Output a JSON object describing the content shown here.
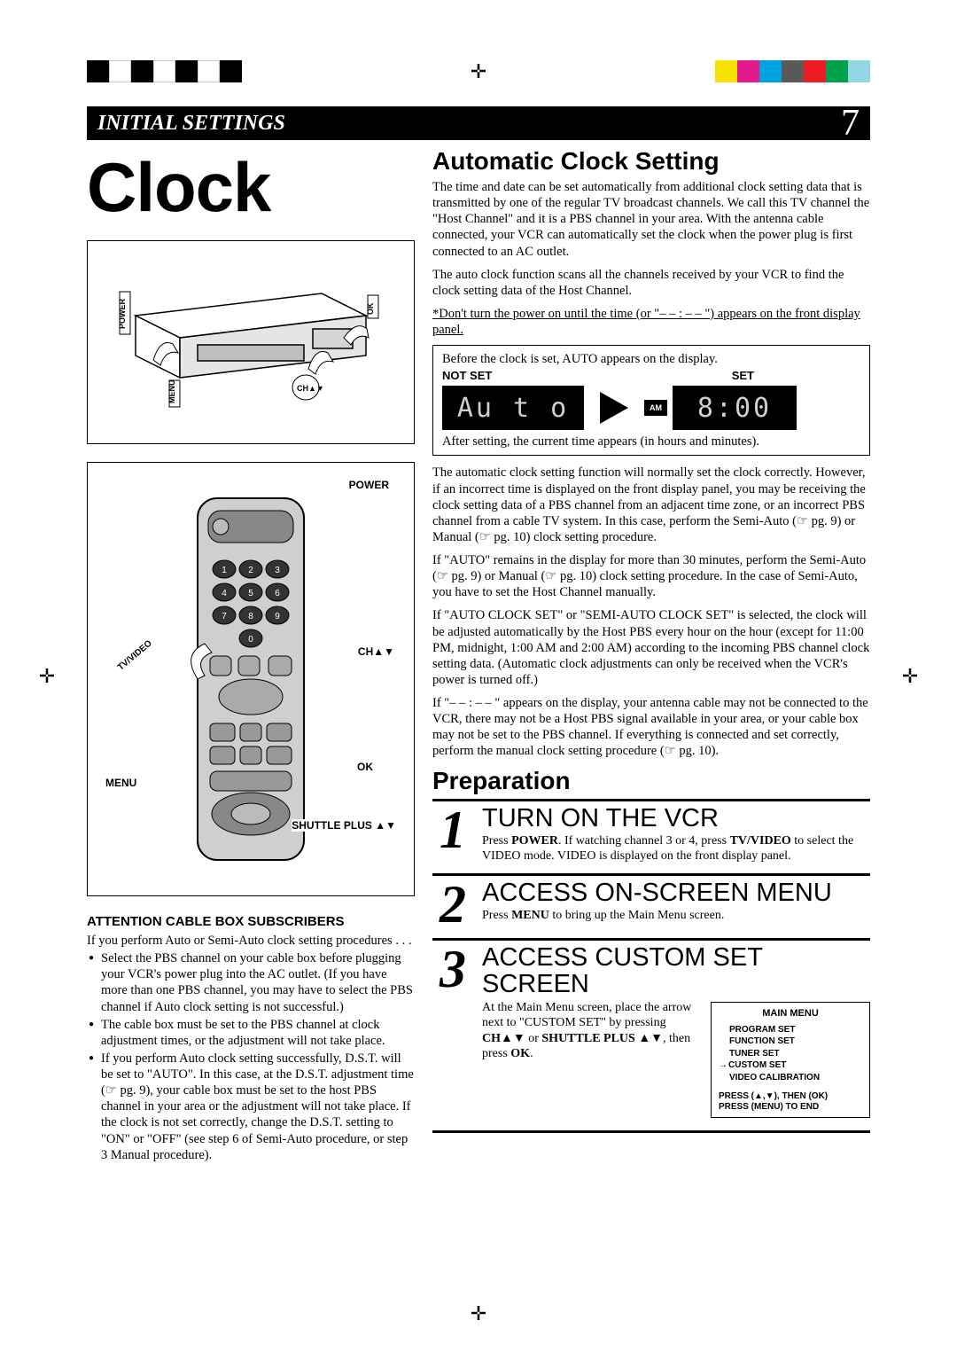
{
  "printmarks": {
    "bar_colors_left": [
      "#000000",
      "#ffffff",
      "#000000",
      "#ffffff",
      "#000000",
      "#ffffff",
      "#000000"
    ],
    "bar_colors_right": [
      "#f6e100",
      "#e11b8b",
      "#00a2e0",
      "#595959",
      "#ed1c24",
      "#00a14b",
      "#92d6e3"
    ]
  },
  "header": {
    "section": "INITIAL SETTINGS",
    "page_number": "7"
  },
  "title": "Clock",
  "left": {
    "vcr_labels": {
      "power": "POWER",
      "ok": "OK",
      "menu": "MENU",
      "ch": "CH▲▼"
    },
    "remote_labels": {
      "power": "POWER",
      "ch": "CH▲▼",
      "ok": "OK",
      "menu": "MENU",
      "shuttle": "SHUTTLE PLUS ▲▼",
      "tvvideo": "TV/VIDEO"
    },
    "attention_title": "ATTENTION CABLE BOX SUBSCRIBERS",
    "attention_intro": "If you perform Auto or Semi-Auto clock setting procedures . . .",
    "bullets": [
      "Select the PBS channel on your cable box before plugging your VCR's power plug into the AC outlet. (If you have more than one PBS channel, you may have to select the PBS channel if Auto clock setting is not successful.)",
      "The cable box must be set to the PBS channel at clock adjustment times, or the adjustment will not take place.",
      "If you perform Auto clock setting successfully, D.S.T. will be set to \"AUTO\". In this case, at the D.S.T. adjustment time (☞ pg. 9), your cable box must be set to the host PBS channel in your area or the adjustment will not take place. If the clock is not set correctly, change the D.S.T. setting to \"ON\" or \"OFF\" (see step 6 of Semi-Auto procedure, or step 3 Manual procedure)."
    ]
  },
  "right": {
    "auto_title": "Automatic Clock Setting",
    "p1": "The time and date can be set automatically from additional clock setting data that is transmitted by one of the regular TV broadcast channels. We call this TV channel the \"Host Channel\" and it is a PBS channel in your area. With the antenna cable connected, your VCR can automatically set the clock when the power plug is first connected to an AC outlet.",
    "p2": "The auto clock function scans all the channels received by your VCR to find the clock setting data of the Host Channel.",
    "p3_underlined": "*Don't turn the power on until the time (or \"– – : – – \") appears on the front display panel.",
    "display": {
      "before_text": "Before the clock is set, AUTO appears on the display.",
      "not_set_label": "NOT SET",
      "not_set_value": "Au t o",
      "set_label": "SET",
      "am_label": "AM",
      "set_value": "8:00",
      "after_text": "After setting, the current time appears (in hours and minutes)."
    },
    "p4": "The automatic clock setting function will normally set the clock correctly. However, if an incorrect time is displayed on the front display panel, you may be receiving the clock setting data of a PBS channel from an adjacent time zone, or an incorrect PBS channel from a cable TV system. In this case, perform the Semi-Auto (☞ pg. 9) or Manual (☞ pg. 10) clock setting procedure.",
    "p5": "If \"AUTO\" remains in the display for more than 30 minutes, perform the Semi-Auto (☞ pg. 9) or Manual (☞ pg. 10) clock setting procedure. In the case of Semi-Auto, you have to set the Host Channel manually.",
    "p6": "If \"AUTO CLOCK SET\" or \"SEMI-AUTO CLOCK SET\" is selected, the clock will be adjusted automatically by the Host PBS every hour on the hour (except for 11:00 PM, midnight, 1:00 AM and 2:00 AM) according to the incoming PBS channel clock setting data. (Automatic clock adjustments can only be received when the VCR's power is turned off.)",
    "p7": "If \"– – : – – \" appears on the display, your antenna cable may not be connected to the VCR, there may not be a Host PBS signal available in your area, or your cable box may not be set to the PBS channel. If everything is connected and set correctly, perform the manual clock setting procedure (☞ pg. 10).",
    "prep_title": "Preparation",
    "steps": [
      {
        "num": "1",
        "title": "TURN ON THE VCR",
        "text_html": "Press <b>POWER</b>. If watching channel 3 or 4, press <b>TV/VIDEO</b> to select the VIDEO mode. VIDEO is displayed on the front display panel."
      },
      {
        "num": "2",
        "title": "ACCESS ON-SCREEN MENU",
        "text_html": "Press <b>MENU</b> to bring up the Main Menu screen."
      },
      {
        "num": "3",
        "title": "ACCESS CUSTOM SET SCREEN",
        "text_html": "At the Main Menu screen, place the arrow next to \"CUSTOM SET\" by pressing <b>CH▲▼</b> or <b>SHUTTLE PLUS ▲▼</b>, then press <b>OK</b>."
      }
    ],
    "menu": {
      "title": "MAIN MENU",
      "items": [
        "PROGRAM SET",
        "FUNCTION SET",
        "TUNER SET",
        "CUSTOM SET",
        "VIDEO CALIBRATION"
      ],
      "selected_index": 3,
      "footer1": "PRESS (▲,▼), THEN (OK)",
      "footer2": "PRESS (MENU) TO END"
    }
  }
}
